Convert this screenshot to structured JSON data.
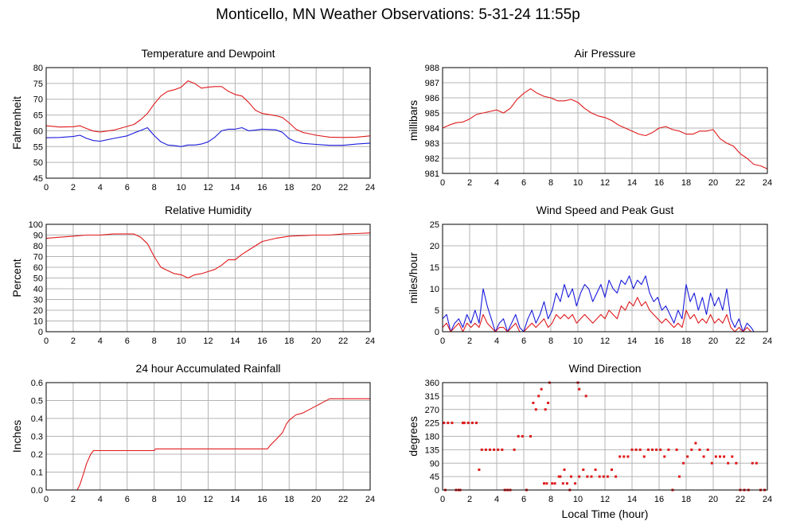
{
  "page": {
    "title": "Monticello, MN Weather Observations: 5-31-24 11:55p",
    "x_axis_label": "Local Time (hour)"
  },
  "colors": {
    "red": "#e0191b",
    "blue": "#1a1adc",
    "grid": "#b4b4b4"
  },
  "chart_data": [
    {
      "id": "temp",
      "type": "line",
      "title": "Temperature and Dewpoint",
      "xlabel": "",
      "ylabel": "Fahrenheit",
      "xlim": [
        0,
        24
      ],
      "ylim": [
        45,
        80
      ],
      "xticks": [
        "0",
        "2",
        "4",
        "6",
        "8",
        "10",
        "12",
        "14",
        "16",
        "18",
        "20",
        "22",
        "24"
      ],
      "yticks": [
        "45",
        "50",
        "55",
        "60",
        "65",
        "70",
        "75",
        "80"
      ],
      "grid": true,
      "series": [
        {
          "color": "red",
          "x": [
            0,
            1,
            2,
            2.5,
            3,
            3.5,
            4,
            5,
            6,
            6.5,
            7,
            7.5,
            8,
            8.5,
            9,
            9.5,
            10,
            10.5,
            11,
            11.5,
            12,
            12.5,
            13,
            13.5,
            14,
            14.5,
            15,
            15.5,
            16,
            17,
            17.5,
            18,
            18.5,
            19,
            20,
            21,
            22,
            23,
            24
          ],
          "y": [
            61.6,
            61.2,
            61.3,
            61.6,
            60.7,
            59.9,
            59.6,
            60.2,
            61.4,
            62.0,
            63.5,
            65.5,
            68.5,
            71.0,
            72.5,
            73.0,
            73.8,
            75.8,
            75.0,
            73.5,
            73.8,
            74.0,
            74.0,
            72.5,
            71.5,
            71.0,
            69.0,
            66.5,
            65.5,
            64.8,
            64.2,
            62.5,
            60.5,
            59.5,
            58.6,
            58.0,
            57.9,
            58.0,
            58.4
          ]
        },
        {
          "color": "blue",
          "x": [
            0,
            1,
            2,
            2.5,
            3,
            3.5,
            4,
            5,
            6,
            6.5,
            7,
            7.5,
            8,
            8.5,
            9,
            9.5,
            10,
            10.5,
            11,
            11.5,
            12,
            12.5,
            13,
            13.5,
            14,
            14.5,
            15,
            15.5,
            16,
            17,
            17.5,
            18,
            18.5,
            19,
            20,
            21,
            22,
            23,
            24
          ],
          "y": [
            57.8,
            57.9,
            58.2,
            58.6,
            57.6,
            56.9,
            56.7,
            57.6,
            58.4,
            59.3,
            60.1,
            61.0,
            58.5,
            56.5,
            55.5,
            55.3,
            55.0,
            55.5,
            55.5,
            55.8,
            56.5,
            58.0,
            60.0,
            60.5,
            60.5,
            61.0,
            60.0,
            60.2,
            60.5,
            60.3,
            59.5,
            57.5,
            56.5,
            56.0,
            55.7,
            55.4,
            55.4,
            55.8,
            56.1
          ]
        }
      ]
    },
    {
      "id": "pressure",
      "type": "line",
      "title": "Air Pressure",
      "xlabel": "",
      "ylabel": "millibars",
      "xlim": [
        0,
        24
      ],
      "ylim": [
        981,
        988
      ],
      "xticks": [
        "0",
        "2",
        "4",
        "6",
        "8",
        "10",
        "12",
        "14",
        "16",
        "18",
        "20",
        "22",
        "24"
      ],
      "yticks": [
        "981",
        "982",
        "983",
        "984",
        "985",
        "986",
        "987",
        "988"
      ],
      "grid": true,
      "series": [
        {
          "color": "red",
          "x": [
            0,
            0.5,
            1,
            1.5,
            2,
            2.5,
            3,
            3.5,
            4,
            4.5,
            5,
            5.5,
            6,
            6.5,
            7,
            7.5,
            8,
            8.5,
            9,
            9.5,
            10,
            10.5,
            11,
            11.5,
            12,
            12.5,
            13,
            13.5,
            14,
            14.5,
            15,
            15.5,
            16,
            16.5,
            17,
            17.5,
            18,
            18.5,
            19,
            19.5,
            20,
            20.5,
            21,
            21.5,
            22,
            22.5,
            23,
            23.5,
            24
          ],
          "y": [
            984.0,
            984.2,
            984.35,
            984.4,
            984.6,
            984.9,
            985.0,
            985.1,
            985.2,
            985.0,
            985.3,
            985.9,
            986.3,
            986.6,
            986.3,
            986.1,
            986.0,
            985.8,
            985.8,
            985.9,
            985.7,
            985.3,
            985.0,
            984.8,
            984.7,
            984.5,
            984.2,
            984.0,
            983.8,
            983.6,
            983.5,
            983.7,
            984.0,
            984.1,
            983.9,
            983.8,
            983.6,
            983.6,
            983.8,
            983.8,
            983.9,
            983.3,
            983.0,
            982.8,
            982.3,
            982.0,
            981.6,
            981.5,
            981.3
          ]
        }
      ]
    },
    {
      "id": "humidity",
      "type": "line",
      "title": "Relative Humidity",
      "xlabel": "",
      "ylabel": "Percent",
      "xlim": [
        0,
        24
      ],
      "ylim": [
        0,
        100
      ],
      "xticks": [
        "0",
        "2",
        "4",
        "6",
        "8",
        "10",
        "12",
        "14",
        "16",
        "18",
        "20",
        "22",
        "24"
      ],
      "yticks": [
        "0",
        "10",
        "20",
        "30",
        "40",
        "50",
        "60",
        "70",
        "80",
        "90",
        "100"
      ],
      "grid": true,
      "series": [
        {
          "color": "red",
          "x": [
            0,
            1,
            2,
            3,
            4,
            5,
            6,
            6.5,
            7,
            7.5,
            8,
            8.5,
            9,
            9.5,
            10,
            10.5,
            11,
            11.5,
            12,
            12.5,
            13,
            13.5,
            14,
            14.5,
            15,
            15.5,
            16,
            17,
            18,
            19,
            20,
            21,
            22,
            23,
            24
          ],
          "y": [
            87,
            88,
            89,
            90,
            90,
            91,
            91,
            91,
            88,
            82,
            70,
            60,
            57,
            54,
            53,
            50,
            53,
            54,
            56,
            58,
            62,
            67,
            67,
            72,
            76,
            80,
            84,
            87,
            89,
            89.5,
            90,
            90,
            91,
            91.5,
            92
          ]
        }
      ]
    },
    {
      "id": "wind",
      "type": "line",
      "title": "Wind Speed and Peak Gust",
      "xlabel": "",
      "ylabel": "miles/hour",
      "xlim": [
        0,
        24
      ],
      "ylim": [
        0,
        25
      ],
      "xticks": [
        "0",
        "2",
        "4",
        "6",
        "8",
        "10",
        "12",
        "14",
        "16",
        "18",
        "20",
        "22",
        "24"
      ],
      "yticks": [
        "0",
        "5",
        "10",
        "15",
        "20",
        "25"
      ],
      "grid": true,
      "series": [
        {
          "color": "blue",
          "x": [
            0,
            0.3,
            0.6,
            0.9,
            1.2,
            1.5,
            1.8,
            2.1,
            2.4,
            2.7,
            3.0,
            3.3,
            3.6,
            3.9,
            4.2,
            4.5,
            4.8,
            5.1,
            5.4,
            5.7,
            6.0,
            6.3,
            6.6,
            6.9,
            7.2,
            7.5,
            7.8,
            8.1,
            8.4,
            8.7,
            9.0,
            9.3,
            9.6,
            9.9,
            10.2,
            10.5,
            10.8,
            11.1,
            11.4,
            11.7,
            12.0,
            12.3,
            12.6,
            12.9,
            13.2,
            13.5,
            13.8,
            14.1,
            14.4,
            14.7,
            15.0,
            15.3,
            15.6,
            15.9,
            16.2,
            16.5,
            16.8,
            17.1,
            17.4,
            17.7,
            18.0,
            18.3,
            18.6,
            18.9,
            19.2,
            19.5,
            19.8,
            20.1,
            20.4,
            20.7,
            21.0,
            21.3,
            21.6,
            21.9,
            22.2,
            22.5,
            22.8,
            23.0
          ],
          "y": [
            3,
            4,
            0,
            2,
            3,
            1,
            4,
            2,
            5,
            2,
            10,
            6,
            3,
            0,
            2,
            3,
            0,
            2,
            4,
            1,
            0,
            3,
            5,
            2,
            4,
            7,
            3,
            5,
            9,
            7,
            11,
            8,
            10,
            6,
            9,
            11,
            10,
            7,
            9,
            11,
            8,
            12,
            10,
            9,
            12,
            11,
            13,
            10,
            12,
            11,
            13,
            9,
            7,
            8,
            5,
            6,
            4,
            2,
            5,
            3,
            11,
            7,
            9,
            5,
            8,
            4,
            9,
            6,
            8,
            5,
            10,
            3,
            1,
            3,
            0,
            2,
            1,
            0
          ]
        },
        {
          "color": "red",
          "x": [
            0,
            0.3,
            0.6,
            0.9,
            1.2,
            1.5,
            1.8,
            2.1,
            2.4,
            2.7,
            3.0,
            3.3,
            3.6,
            3.9,
            4.2,
            4.5,
            4.8,
            5.1,
            5.4,
            5.7,
            6.0,
            6.3,
            6.6,
            6.9,
            7.2,
            7.5,
            7.8,
            8.1,
            8.4,
            8.7,
            9.0,
            9.3,
            9.6,
            9.9,
            10.2,
            10.5,
            10.8,
            11.1,
            11.4,
            11.7,
            12.0,
            12.3,
            12.6,
            12.9,
            13.2,
            13.5,
            13.8,
            14.1,
            14.4,
            14.7,
            15.0,
            15.3,
            15.6,
            15.9,
            16.2,
            16.5,
            16.8,
            17.1,
            17.4,
            17.7,
            18.0,
            18.3,
            18.6,
            18.9,
            19.2,
            19.5,
            19.8,
            20.1,
            20.4,
            20.7,
            21.0,
            21.3,
            21.6,
            21.9,
            22.2,
            22.5,
            22.8,
            23.0
          ],
          "y": [
            1,
            2,
            0,
            1,
            2,
            0,
            2,
            1,
            2,
            1,
            4,
            2,
            1,
            0,
            1,
            1,
            0,
            1,
            2,
            0,
            0,
            1,
            2,
            1,
            2,
            3,
            1,
            2,
            4,
            3,
            4,
            3,
            4,
            2,
            3,
            4,
            3,
            2,
            3,
            4,
            3,
            5,
            4,
            3,
            6,
            5,
            7,
            6,
            8,
            6,
            7,
            5,
            4,
            3,
            2,
            3,
            2,
            1,
            2,
            1,
            5,
            3,
            4,
            2,
            3,
            2,
            4,
            2,
            3,
            2,
            4,
            1,
            0,
            1,
            0,
            1,
            0,
            0
          ]
        }
      ]
    },
    {
      "id": "rain",
      "type": "line",
      "title": "24 hour Accumulated Rainfall",
      "xlabel": "",
      "ylabel": "Inches",
      "xlim": [
        0,
        24
      ],
      "ylim": [
        0,
        0.6
      ],
      "xticks": [
        "0",
        "2",
        "4",
        "6",
        "8",
        "10",
        "12",
        "14",
        "16",
        "18",
        "20",
        "22",
        "24"
      ],
      "yticks": [
        "0.0",
        "0.1",
        "0.2",
        "0.3",
        "0.4",
        "0.5",
        "0.6"
      ],
      "grid": true,
      "series": [
        {
          "color": "red",
          "x": [
            0,
            2.3,
            2.5,
            2.8,
            3.0,
            3.3,
            3.5,
            8.0,
            8.1,
            16.4,
            16.6,
            17.0,
            17.5,
            17.8,
            18.0,
            18.5,
            19.0,
            19.5,
            20.0,
            20.5,
            21.0,
            24
          ],
          "y": [
            0,
            0,
            0.03,
            0.1,
            0.15,
            0.2,
            0.22,
            0.22,
            0.23,
            0.23,
            0.25,
            0.28,
            0.32,
            0.37,
            0.39,
            0.42,
            0.43,
            0.45,
            0.47,
            0.49,
            0.51,
            0.51
          ]
        }
      ]
    },
    {
      "id": "direction",
      "type": "scatter",
      "title": "Wind Direction",
      "xlabel": "Local Time (hour)",
      "ylabel": "degrees",
      "xlim": [
        0,
        24
      ],
      "ylim": [
        0,
        360
      ],
      "xticks": [
        "0",
        "2",
        "4",
        "6",
        "8",
        "10",
        "12",
        "14",
        "16",
        "18",
        "20",
        "22",
        "24"
      ],
      "yticks": [
        "0",
        "45",
        "90",
        "135",
        "180",
        "225",
        "270",
        "315",
        "360"
      ],
      "grid": true,
      "series": [
        {
          "color": "red",
          "x": [
            0.1,
            0.4,
            0.7,
            1.0,
            1.3,
            1.6,
            1.9,
            2.2,
            2.5,
            0.2,
            1.2,
            1.5,
            2.7,
            2.9,
            3.2,
            3.5,
            3.8,
            4.1,
            4.4,
            4.6,
            4.8,
            5.0,
            5.3,
            5.6,
            5.9,
            6.2,
            6.5,
            6.7,
            6.9,
            7.1,
            7.3,
            7.5,
            7.7,
            7.9,
            8.1,
            7.6,
            7.8,
            8.3,
            8.6,
            8.9,
            9.2,
            9.5,
            9.8,
            10.1,
            10.4,
            10.7,
            11.0,
            11.3,
            11.6,
            11.9,
            12.2,
            12.5,
            12.8,
            13.1,
            13.4,
            13.7,
            14.0,
            14.3,
            14.6,
            14.9,
            15.2,
            15.5,
            15.8,
            16.1,
            16.4,
            16.7,
            17.0,
            17.3,
            17.5,
            17.8,
            18.1,
            18.4,
            18.7,
            19.0,
            19.3,
            19.6,
            19.9,
            20.2,
            20.5,
            20.8,
            21.1,
            21.4,
            21.7,
            22.0,
            22.3,
            22.6,
            22.9,
            23.2,
            23.5,
            23.8,
            8.7,
            9.0,
            10.1,
            10.6,
            9.4,
            10.0
          ],
          "y": [
            225,
            225,
            225,
            0,
            0,
            225,
            225,
            225,
            225,
            0,
            0,
            225,
            68,
            135,
            135,
            135,
            135,
            135,
            135,
            0,
            0,
            0,
            135,
            180,
            180,
            0,
            180,
            292,
            270,
            315,
            338,
            22,
            22,
            360,
            22,
            270,
            292,
            22,
            45,
            22,
            22,
            45,
            22,
            45,
            68,
            45,
            45,
            68,
            45,
            45,
            45,
            68,
            45,
            112,
            112,
            112,
            135,
            135,
            135,
            112,
            135,
            135,
            135,
            135,
            112,
            135,
            0,
            135,
            45,
            90,
            112,
            135,
            157,
            135,
            112,
            135,
            90,
            112,
            112,
            112,
            90,
            112,
            90,
            0,
            0,
            0,
            90,
            90,
            0,
            0,
            45,
            68,
            338,
            315,
            0,
            360
          ]
        }
      ]
    }
  ]
}
